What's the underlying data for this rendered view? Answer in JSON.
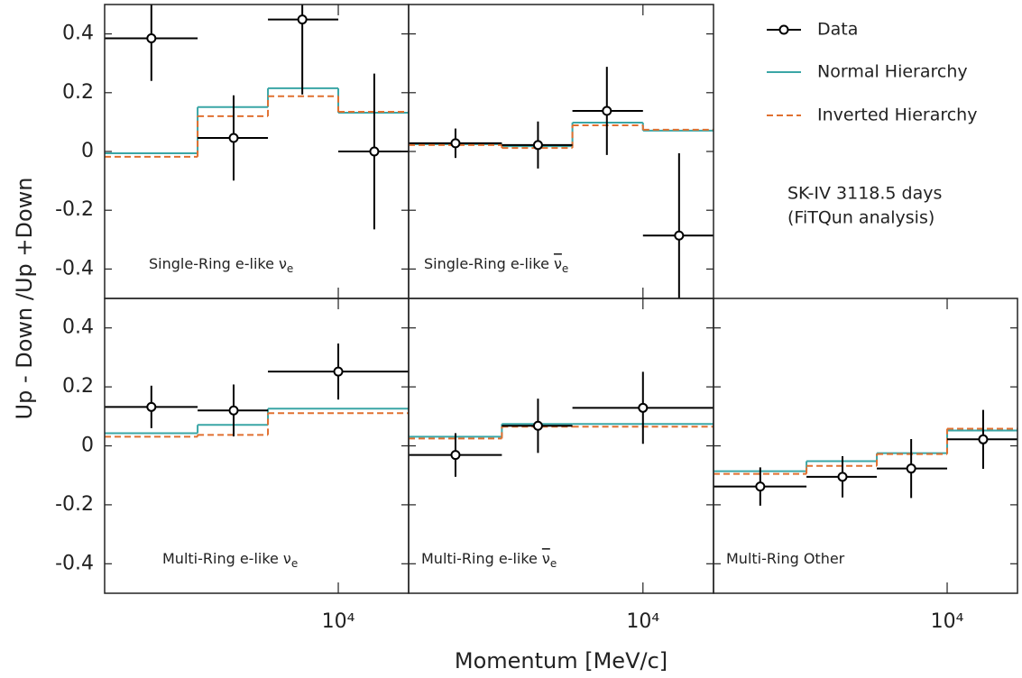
{
  "chart_data": {
    "type": "binned-ratio",
    "xlabel": "Momentum [MeV/c]",
    "ylabel": "Up - Down /Up +Down",
    "xscale": "log",
    "xlim": [
      1000,
      20000
    ],
    "xticks": [
      {
        "value": 10000,
        "label": "10⁴"
      }
    ],
    "ylim": [
      -0.5,
      0.5
    ],
    "yticks": [
      -0.4,
      -0.2,
      0,
      0.2,
      0.4
    ],
    "series": [
      {
        "name": "Data",
        "color": "#000000"
      },
      {
        "name": "Normal Hierarchy",
        "color": "#3aa6a6"
      },
      {
        "name": "Inverted Hierarchy",
        "color": "#e07030",
        "dashed": true
      }
    ],
    "annotation": [
      "SK-IV 3118.5 days",
      "(FiTQun analysis)"
    ],
    "panels": [
      {
        "label": "Single-Ring  e-like",
        "particle": "ν",
        "particle_sub": "e",
        "antiparticle": false,
        "bins": [
          1000,
          2500,
          5000,
          10000,
          20000
        ],
        "x": [
          1585,
          3565,
          7015,
          14260
        ],
        "data": [
          0.385,
          0.046,
          0.449,
          0.0
        ],
        "data_err": [
          0.145,
          0.145,
          0.255,
          0.265
        ],
        "normal": [
          -0.006,
          0.151,
          0.215,
          0.132
        ],
        "inverted": [
          -0.018,
          0.12,
          0.188,
          0.135
        ]
      },
      {
        "label": "Single-Ring  e-like",
        "particle": "ν",
        "particle_sub": "e",
        "antiparticle": true,
        "bins": [
          1000,
          2500,
          5000,
          10000,
          20000
        ],
        "x": [
          1585,
          3565,
          7015,
          14260
        ],
        "data": [
          0.028,
          0.022,
          0.138,
          -0.286
        ],
        "data_err": [
          0.05,
          0.08,
          0.15,
          0.28
        ],
        "normal": [
          0.025,
          0.018,
          0.098,
          0.071
        ],
        "inverted": [
          0.022,
          0.012,
          0.089,
          0.074
        ]
      },
      {
        "label": "Multi-Ring  e-like",
        "particle": "ν",
        "particle_sub": "e",
        "antiparticle": false,
        "bins": [
          1000,
          2500,
          5000,
          20000
        ],
        "x": [
          1585,
          3565,
          10000
        ],
        "data": [
          0.132,
          0.12,
          0.252
        ],
        "data_err": [
          0.072,
          0.088,
          0.095
        ],
        "normal": [
          0.043,
          0.071,
          0.126
        ],
        "inverted": [
          0.031,
          0.037,
          0.111
        ]
      },
      {
        "label": "Multi-Ring  e-like",
        "particle": "ν",
        "particle_sub": "e",
        "antiparticle": true,
        "bins": [
          1000,
          2500,
          5000,
          20000
        ],
        "x": [
          1585,
          3565,
          10000
        ],
        "data": [
          -0.031,
          0.068,
          0.129
        ],
        "data_err": [
          0.074,
          0.092,
          0.122
        ],
        "normal": [
          0.031,
          0.074,
          0.074
        ],
        "inverted": [
          0.025,
          0.065,
          0.065
        ]
      },
      {
        "label": "Multi-Ring Other",
        "bins": [
          1000,
          2500,
          5000,
          10000,
          20000
        ],
        "x": [
          1585,
          3565,
          7015,
          14260
        ],
        "data": [
          -0.138,
          -0.105,
          -0.077,
          0.022
        ],
        "data_err": [
          0.065,
          0.07,
          0.1,
          0.1
        ],
        "normal": [
          -0.086,
          -0.052,
          -0.025,
          0.052
        ],
        "inverted": [
          -0.095,
          -0.068,
          -0.028,
          0.058
        ]
      }
    ]
  }
}
